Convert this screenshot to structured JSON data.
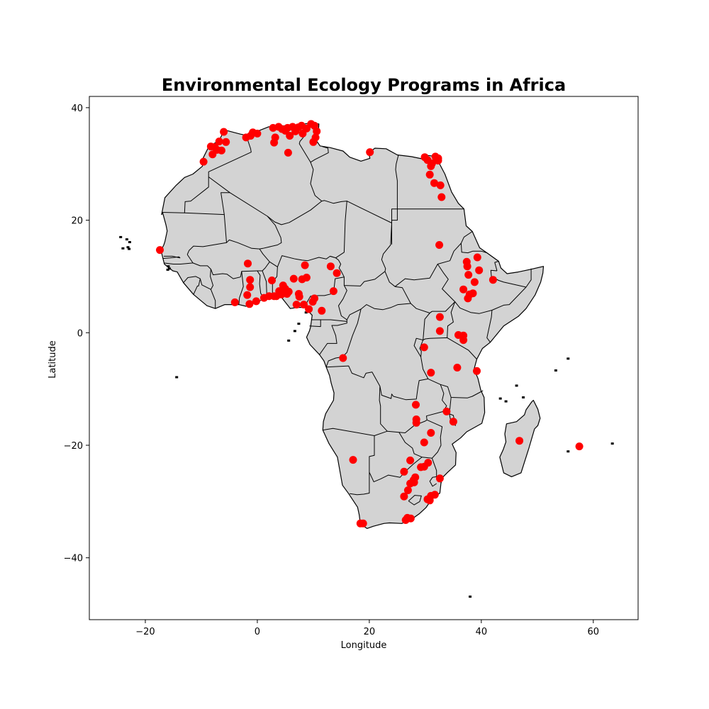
{
  "chart_data": {
    "type": "scatter",
    "title": "Environmental Ecology Programs in Africa",
    "xlabel": "Longitude",
    "ylabel": "Latitude",
    "xlim": [
      -30,
      68
    ],
    "ylim": [
      -51,
      42
    ],
    "xticks": [
      -20,
      0,
      20,
      40,
      60
    ],
    "yticks": [
      -40,
      -20,
      0,
      20,
      40
    ],
    "xtick_labels": [
      "−20",
      "0",
      "20",
      "40",
      "60"
    ],
    "ytick_labels": [
      "−40",
      "−20",
      "0",
      "20",
      "40"
    ],
    "grid": false,
    "colors": {
      "points": "#ff0000",
      "land": "#d3d3d3",
      "border": "#000000"
    },
    "points": [
      {
        "lon": -17.4,
        "lat": 14.7
      },
      {
        "lon": -9.6,
        "lat": 30.4
      },
      {
        "lon": -8.3,
        "lat": 33.1
      },
      {
        "lon": -8.0,
        "lat": 31.7
      },
      {
        "lon": -7.6,
        "lat": 33.0
      },
      {
        "lon": -7.2,
        "lat": 32.5
      },
      {
        "lon": -6.8,
        "lat": 34.0
      },
      {
        "lon": -6.4,
        "lat": 32.4
      },
      {
        "lon": -6.0,
        "lat": 35.7
      },
      {
        "lon": -5.6,
        "lat": 33.9
      },
      {
        "lon": -2.0,
        "lat": 34.7
      },
      {
        "lon": -1.2,
        "lat": 35.0
      },
      {
        "lon": -0.8,
        "lat": 35.6
      },
      {
        "lon": 0.0,
        "lat": 35.4
      },
      {
        "lon": 2.8,
        "lat": 36.4
      },
      {
        "lon": 3.0,
        "lat": 33.8
      },
      {
        "lon": 3.2,
        "lat": 34.7
      },
      {
        "lon": 3.8,
        "lat": 36.6
      },
      {
        "lon": 4.4,
        "lat": 36.2
      },
      {
        "lon": 5.0,
        "lat": 35.9
      },
      {
        "lon": 5.4,
        "lat": 36.4
      },
      {
        "lon": 5.5,
        "lat": 32.0
      },
      {
        "lon": 5.8,
        "lat": 35.0
      },
      {
        "lon": 6.3,
        "lat": 36.6
      },
      {
        "lon": 6.8,
        "lat": 35.8
      },
      {
        "lon": 7.3,
        "lat": 36.5
      },
      {
        "lon": 7.9,
        "lat": 36.8
      },
      {
        "lon": 8.1,
        "lat": 35.4
      },
      {
        "lon": 8.8,
        "lat": 36.3
      },
      {
        "lon": 9.6,
        "lat": 37.1
      },
      {
        "lon": 10.2,
        "lat": 36.8
      },
      {
        "lon": 10.0,
        "lat": 33.9
      },
      {
        "lon": 10.6,
        "lat": 35.8
      },
      {
        "lon": 10.4,
        "lat": 34.7
      },
      {
        "lon": 20.1,
        "lat": 32.1
      },
      {
        "lon": 29.9,
        "lat": 31.2
      },
      {
        "lon": 30.4,
        "lat": 30.7
      },
      {
        "lon": 31.0,
        "lat": 29.6
      },
      {
        "lon": 31.2,
        "lat": 30.1
      },
      {
        "lon": 31.8,
        "lat": 31.3
      },
      {
        "lon": 32.3,
        "lat": 30.6
      },
      {
        "lon": 32.3,
        "lat": 31.0
      },
      {
        "lon": 30.8,
        "lat": 28.1
      },
      {
        "lon": 31.6,
        "lat": 26.6
      },
      {
        "lon": 32.7,
        "lat": 26.2
      },
      {
        "lon": 32.9,
        "lat": 24.1
      },
      {
        "lon": 32.5,
        "lat": 15.6
      },
      {
        "lon": -1.7,
        "lat": 12.3
      },
      {
        "lon": -1.3,
        "lat": 9.4
      },
      {
        "lon": -1.3,
        "lat": 8.1
      },
      {
        "lon": -1.8,
        "lat": 6.7
      },
      {
        "lon": -1.4,
        "lat": 5.1
      },
      {
        "lon": -0.2,
        "lat": 5.6
      },
      {
        "lon": -4.0,
        "lat": 5.4
      },
      {
        "lon": 1.2,
        "lat": 6.2
      },
      {
        "lon": 2.1,
        "lat": 6.5
      },
      {
        "lon": 2.6,
        "lat": 9.3
      },
      {
        "lon": 3.0,
        "lat": 6.5
      },
      {
        "lon": 3.4,
        "lat": 6.5
      },
      {
        "lon": 3.9,
        "lat": 7.4
      },
      {
        "lon": 4.3,
        "lat": 6.8
      },
      {
        "lon": 4.6,
        "lat": 8.4
      },
      {
        "lon": 5.0,
        "lat": 7.8
      },
      {
        "lon": 5.3,
        "lat": 6.9
      },
      {
        "lon": 5.6,
        "lat": 7.3
      },
      {
        "lon": 6.5,
        "lat": 9.6
      },
      {
        "lon": 7.0,
        "lat": 5.0
      },
      {
        "lon": 7.4,
        "lat": 6.9
      },
      {
        "lon": 7.5,
        "lat": 6.4
      },
      {
        "lon": 8.0,
        "lat": 9.5
      },
      {
        "lon": 8.3,
        "lat": 5.0
      },
      {
        "lon": 8.5,
        "lat": 12.0
      },
      {
        "lon": 8.8,
        "lat": 9.8
      },
      {
        "lon": 9.2,
        "lat": 4.2
      },
      {
        "lon": 9.9,
        "lat": 5.5
      },
      {
        "lon": 10.2,
        "lat": 6.1
      },
      {
        "lon": 11.5,
        "lat": 3.9
      },
      {
        "lon": 13.1,
        "lat": 11.8
      },
      {
        "lon": 13.6,
        "lat": 7.4
      },
      {
        "lon": 14.2,
        "lat": 10.6
      },
      {
        "lon": 15.3,
        "lat": -4.5
      },
      {
        "lon": 39.3,
        "lat": 13.4
      },
      {
        "lon": 37.4,
        "lat": 12.6
      },
      {
        "lon": 37.5,
        "lat": 11.8
      },
      {
        "lon": 39.6,
        "lat": 11.1
      },
      {
        "lon": 37.7,
        "lat": 10.3
      },
      {
        "lon": 38.8,
        "lat": 9.0
      },
      {
        "lon": 42.1,
        "lat": 9.4
      },
      {
        "lon": 36.8,
        "lat": 7.7
      },
      {
        "lon": 38.5,
        "lat": 7.0
      },
      {
        "lon": 37.9,
        "lat": 6.8
      },
      {
        "lon": 37.6,
        "lat": 6.1
      },
      {
        "lon": 32.6,
        "lat": 2.8
      },
      {
        "lon": 32.6,
        "lat": 0.3
      },
      {
        "lon": 35.9,
        "lat": -0.4
      },
      {
        "lon": 36.8,
        "lat": -0.5
      },
      {
        "lon": 36.8,
        "lat": -1.3
      },
      {
        "lon": 29.8,
        "lat": -2.6
      },
      {
        "lon": 35.7,
        "lat": -6.2
      },
      {
        "lon": 39.2,
        "lat": -6.8
      },
      {
        "lon": 31.0,
        "lat": -7.1
      },
      {
        "lon": 28.3,
        "lat": -12.8
      },
      {
        "lon": 28.4,
        "lat": -15.4
      },
      {
        "lon": 28.4,
        "lat": -16.0
      },
      {
        "lon": 33.8,
        "lat": -14.0
      },
      {
        "lon": 35.0,
        "lat": -15.8
      },
      {
        "lon": 31.0,
        "lat": -17.8
      },
      {
        "lon": 29.8,
        "lat": -19.5
      },
      {
        "lon": 46.8,
        "lat": -19.2
      },
      {
        "lon": 57.5,
        "lat": -20.2
      },
      {
        "lon": 17.1,
        "lat": -22.6
      },
      {
        "lon": 27.3,
        "lat": -22.7
      },
      {
        "lon": 29.2,
        "lat": -23.9
      },
      {
        "lon": 29.8,
        "lat": -23.8
      },
      {
        "lon": 30.5,
        "lat": -23.1
      },
      {
        "lon": 26.2,
        "lat": -24.7
      },
      {
        "lon": 28.2,
        "lat": -25.7
      },
      {
        "lon": 27.9,
        "lat": -26.2
      },
      {
        "lon": 28.0,
        "lat": -26.6
      },
      {
        "lon": 27.3,
        "lat": -26.8
      },
      {
        "lon": 32.6,
        "lat": -25.9
      },
      {
        "lon": 26.9,
        "lat": -28.0
      },
      {
        "lon": 26.2,
        "lat": -29.1
      },
      {
        "lon": 31.0,
        "lat": -29.0
      },
      {
        "lon": 31.7,
        "lat": -28.8
      },
      {
        "lon": 30.4,
        "lat": -29.6
      },
      {
        "lon": 30.8,
        "lat": -29.8
      },
      {
        "lon": 18.4,
        "lat": -33.9
      },
      {
        "lon": 18.9,
        "lat": -33.9
      },
      {
        "lon": 26.5,
        "lat": -33.3
      },
      {
        "lon": 26.8,
        "lat": -32.9
      },
      {
        "lon": 27.4,
        "lat": -33.0
      }
    ]
  }
}
